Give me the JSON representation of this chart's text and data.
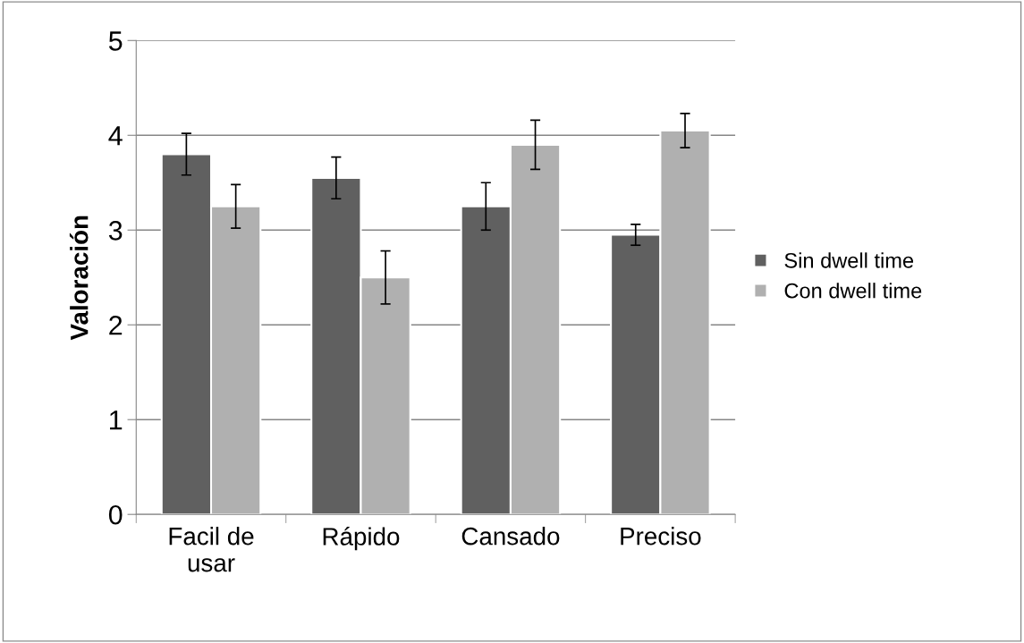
{
  "chart_data": {
    "type": "bar",
    "ylabel": "Valoración",
    "categories": [
      "Facil de\nusar",
      "Rápido",
      "Cansado",
      "Preciso"
    ],
    "series": [
      {
        "name": "Sin dwell time",
        "color": "#606060",
        "values": [
          3.8,
          3.55,
          3.25,
          2.95
        ],
        "errors": [
          0.22,
          0.22,
          0.25,
          0.11
        ]
      },
      {
        "name": "Con dwell time",
        "color": "#b0b0b0",
        "values": [
          3.25,
          2.5,
          3.9,
          4.05
        ],
        "errors": [
          0.23,
          0.28,
          0.26,
          0.18
        ]
      }
    ],
    "ylim": [
      0,
      5
    ],
    "yticks": [
      0,
      1,
      2,
      3,
      4,
      5
    ],
    "grid": "y",
    "legend": "right"
  }
}
